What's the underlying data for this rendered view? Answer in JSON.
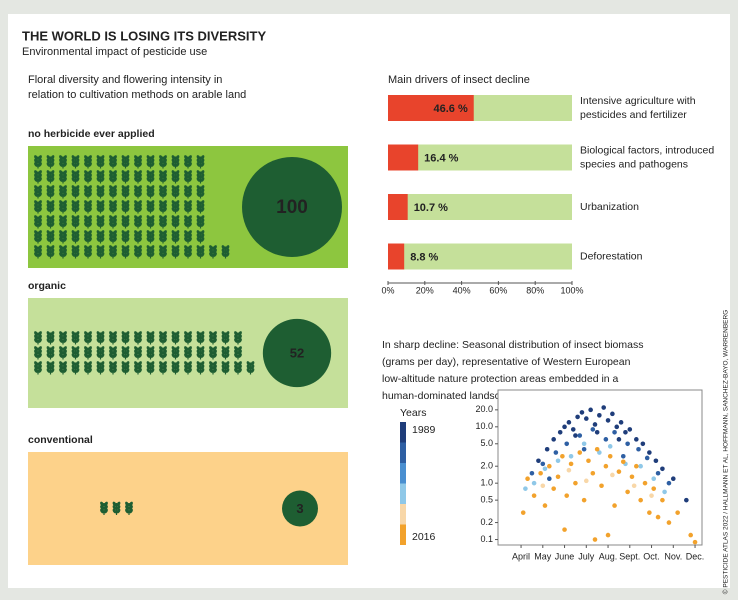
{
  "header": {
    "title": "THE WORLD IS LOSING ITS DIVERSITY",
    "subtitle": "Environmental impact of pesticide use"
  },
  "credit": "© PESTICIDE ATLAS 2022 / HALLMANN ET AL, HOFFMANN, SANCHEZ-BAYO, WARRENBERG",
  "chart_data": [
    {
      "type": "pictogram",
      "title": "Floral diversity and flowering intensity in relation to cultivation methods on arable land",
      "icon_color": "#1e5e32",
      "circle_color": "#1e5e32",
      "categories": [
        "no herbicide ever applied",
        "organic",
        "conventional"
      ],
      "values": [
        100,
        52,
        3
      ],
      "colors": [
        "#8dc63f",
        "#c5e09a",
        "#fdd28a"
      ]
    },
    {
      "type": "bar",
      "title": "Main drivers of insect decline",
      "categories": [
        "Intensive agriculture with pesticides and fertilizer",
        "Biological factors, introduced species and pathogens",
        "Urbanization",
        "Deforestation"
      ],
      "values": [
        46.6,
        16.4,
        10.7,
        8.8
      ],
      "value_labels": [
        "46.6 %",
        "16.4 %",
        "10.7 %",
        "8.8 %"
      ],
      "color": "#e8442c",
      "track_color": "#c5e09a",
      "xlim": [
        0,
        100
      ],
      "xticks": [
        {
          "value": 0,
          "label": "0%"
        },
        {
          "value": 20,
          "label": "20%"
        },
        {
          "value": 40,
          "label": "40%"
        },
        {
          "value": 60,
          "label": "60%"
        },
        {
          "value": 80,
          "label": "80%"
        },
        {
          "value": 100,
          "label": "100%"
        }
      ]
    },
    {
      "type": "scatter",
      "title": "In sharp decline: Seasonal distribution of insect biomass (grams per day), representative of Western European low-altitude nature protection areas embedded in a human-dominated landscape",
      "log_y": true,
      "xlim": [
        2.94,
        12.32
      ],
      "ylim": [
        0.08,
        45
      ],
      "xticks": [
        {
          "value": 4,
          "label": "April"
        },
        {
          "value": 5,
          "label": "May"
        },
        {
          "value": 6,
          "label": "June"
        },
        {
          "value": 7,
          "label": "July"
        },
        {
          "value": 8,
          "label": "Aug."
        },
        {
          "value": 9,
          "label": "Sept."
        },
        {
          "value": 10,
          "label": "Oct."
        },
        {
          "value": 11,
          "label": "Nov."
        },
        {
          "value": 12,
          "label": "Dec."
        }
      ],
      "yticks": [
        {
          "value": 20,
          "label": "20.0"
        },
        {
          "value": 10,
          "label": "10.0"
        },
        {
          "value": 5,
          "label": "5.0"
        },
        {
          "value": 2,
          "label": "2.0"
        },
        {
          "value": 1,
          "label": "1.0"
        },
        {
          "value": 0.5,
          "label": "0.5"
        },
        {
          "value": 0.2,
          "label": "0.2"
        },
        {
          "value": 0.1,
          "label": "0.1"
        }
      ],
      "legend": {
        "title": "Years",
        "labels": [
          "1989",
          "2016"
        ],
        "colors": [
          "#1f3d7a",
          "#2e5fa3",
          "#4a8fd0",
          "#8fc8e8",
          "#f8d7a8",
          "#f2a22c"
        ]
      },
      "series": [
        {
          "color": "#1f3d7a",
          "x": [
            4.8,
            5.2,
            5.5,
            5.8,
            6.0,
            6.2,
            6.4,
            6.6,
            6.8,
            7.0,
            7.2,
            7.4,
            7.6,
            7.8,
            8.0,
            8.2,
            8.4,
            8.6,
            8.8,
            9.0,
            9.3,
            9.6,
            9.9,
            10.2,
            10.5,
            11.0,
            11.6,
            6.5,
            7.5,
            8.5
          ],
          "values": [
            2.5,
            4,
            6,
            8,
            10,
            12,
            9,
            15,
            18,
            14,
            20,
            11,
            16,
            22,
            13,
            17,
            10,
            12,
            8,
            9,
            6,
            5,
            3.5,
            2.5,
            1.8,
            1.2,
            0.5,
            7,
            8,
            6
          ]
        },
        {
          "color": "#2e5fa3",
          "x": [
            4.5,
            5.0,
            5.6,
            6.1,
            6.7,
            7.3,
            7.9,
            8.3,
            8.9,
            9.4,
            9.8,
            10.3,
            10.8,
            5.3,
            6.9,
            8.7
          ],
          "values": [
            1.5,
            2.2,
            3.5,
            5,
            7,
            9,
            6,
            8,
            5,
            4,
            2.8,
            1.5,
            1.0,
            1.2,
            4,
            3
          ]
        },
        {
          "color": "#8fc8e8",
          "x": [
            4.2,
            4.6,
            5.1,
            5.7,
            6.3,
            6.9,
            7.6,
            8.1,
            8.8,
            9.5,
            10.1,
            10.6
          ],
          "values": [
            0.8,
            1.0,
            1.8,
            2.5,
            3,
            5,
            3.5,
            4.5,
            2.2,
            2,
            1.2,
            0.7
          ]
        },
        {
          "color": "#f8d7a8",
          "x": [
            5.0,
            6.2,
            7.0,
            8.2,
            9.2,
            10.0
          ],
          "values": [
            0.9,
            1.7,
            1.1,
            1.4,
            0.9,
            0.6
          ]
        },
        {
          "color": "#f2a22c",
          "x": [
            4.1,
            4.3,
            4.6,
            4.9,
            5.1,
            5.3,
            5.5,
            5.7,
            5.9,
            6.1,
            6.3,
            6.5,
            6.7,
            6.9,
            7.1,
            7.3,
            7.5,
            7.7,
            7.9,
            8.1,
            8.3,
            8.5,
            8.7,
            8.9,
            9.1,
            9.3,
            9.5,
            9.7,
            9.9,
            10.1,
            10.3,
            10.5,
            10.8,
            11.2,
            6.0,
            7.4,
            8.0,
            11.8,
            12.0
          ],
          "values": [
            0.3,
            1.2,
            0.6,
            1.5,
            0.4,
            2,
            0.8,
            1.3,
            3,
            0.6,
            2.2,
            1.0,
            3.5,
            0.5,
            2.5,
            1.5,
            4,
            0.9,
            2,
            3,
            0.4,
            1.6,
            2.4,
            0.7,
            1.3,
            2,
            0.5,
            1,
            0.3,
            0.8,
            0.25,
            0.5,
            0.2,
            0.3,
            0.15,
            0.1,
            0.12,
            0.12,
            0.09
          ]
        }
      ]
    }
  ]
}
